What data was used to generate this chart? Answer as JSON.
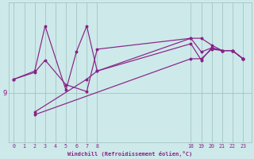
{
  "background_color": "#cde9e9",
  "line_color": "#882288",
  "grid_color": "#9bbfbf",
  "xlabel": "Windchill (Refroidissement éolien,°C)",
  "x_ticks_left": [
    0,
    1,
    2,
    3,
    4,
    5,
    6,
    7,
    8
  ],
  "x_ticks_right": [
    18,
    19,
    20,
    21,
    22,
    23
  ],
  "series1_x_pos": [
    0,
    2,
    3,
    5,
    7,
    8,
    17,
    18,
    19,
    20,
    21,
    22
  ],
  "series1_y": [
    9.5,
    9.75,
    10.2,
    9.3,
    9.05,
    10.6,
    11.0,
    11.0,
    10.75,
    10.55,
    10.55,
    10.25
  ],
  "series2_x_pos": [
    0,
    2,
    3,
    5,
    6,
    7,
    8,
    17,
    18,
    19,
    20,
    21,
    22
  ],
  "series2_y": [
    9.5,
    9.8,
    11.45,
    9.1,
    10.5,
    11.45,
    9.8,
    10.8,
    10.2,
    10.65,
    10.55,
    10.55,
    10.25
  ],
  "series3_x_pos": [
    2,
    17,
    18,
    19,
    20,
    21,
    22
  ],
  "series3_y": [
    8.2,
    10.25,
    10.25,
    10.6,
    10.55,
    10.55,
    10.25
  ],
  "series4_x_pos": [
    2,
    7,
    8,
    17,
    18,
    19,
    20,
    21,
    22
  ],
  "series4_y": [
    8.3,
    9.5,
    9.8,
    11.0,
    10.5,
    10.65,
    10.55,
    10.55,
    10.25
  ],
  "ylim": [
    7.2,
    12.3
  ],
  "xlim": [
    -0.5,
    22.8
  ],
  "left_tick_positions": [
    0,
    1,
    2,
    3,
    4,
    5,
    6,
    7,
    8
  ],
  "right_tick_positions": [
    17,
    18,
    19,
    20,
    21,
    22
  ],
  "left_tick_labels": [
    "0",
    "1",
    "2",
    "3",
    "4",
    "5",
    "6",
    "7",
    "8"
  ],
  "right_tick_labels": [
    "18",
    "19",
    "20",
    "21",
    "22",
    "23"
  ],
  "ytick_pos": [
    9
  ],
  "ytick_label": [
    "9"
  ]
}
